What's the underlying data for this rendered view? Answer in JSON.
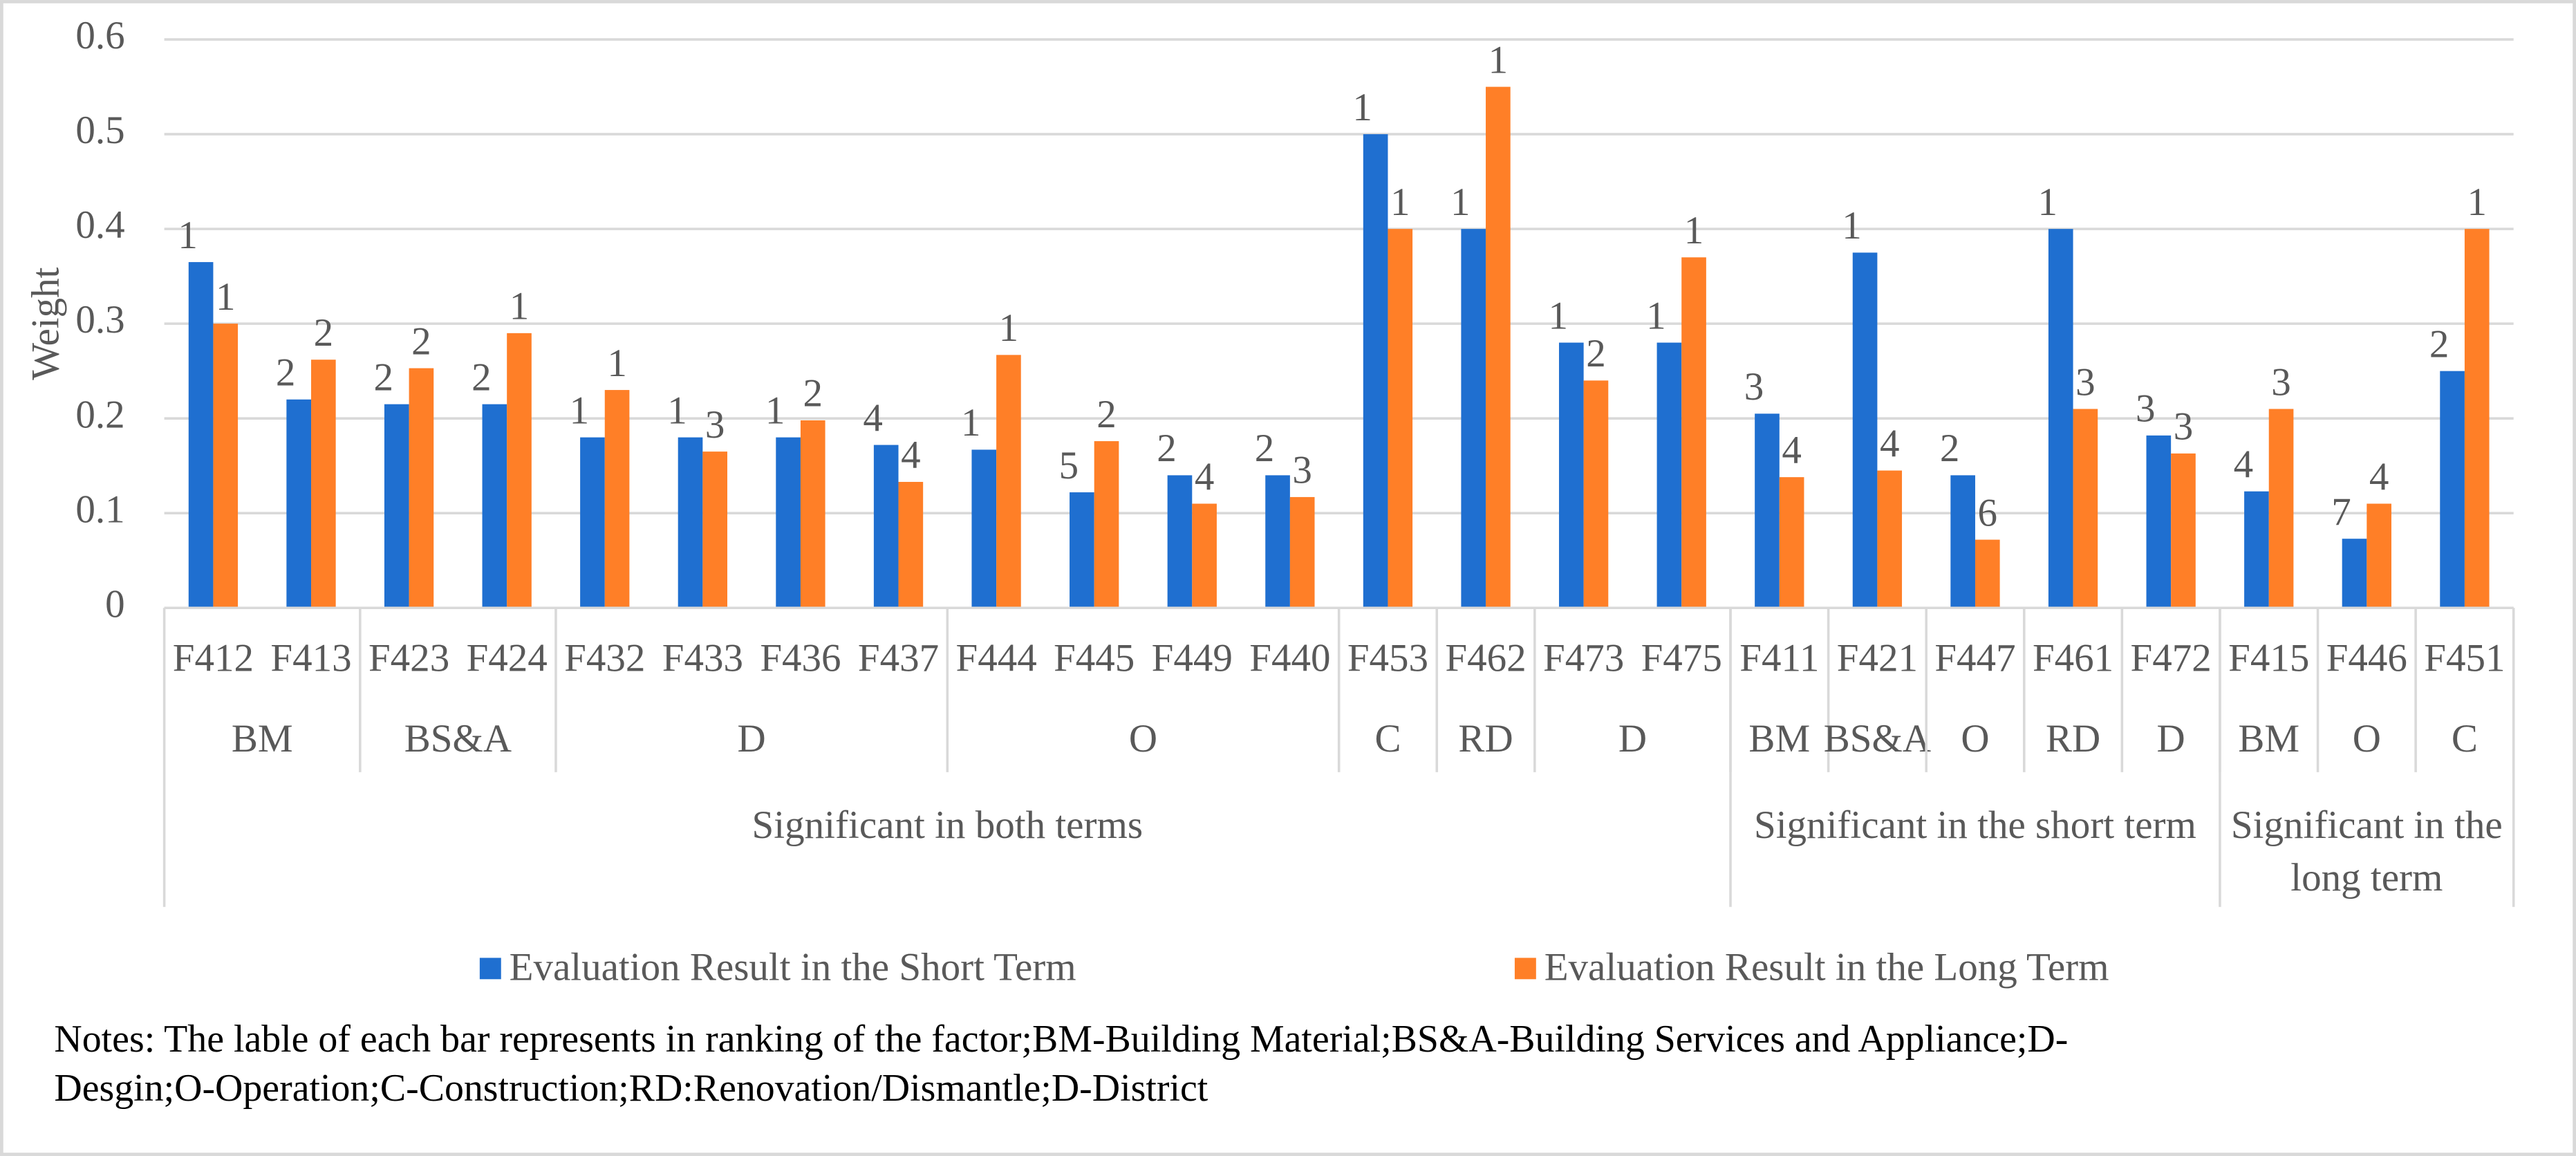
{
  "chart_data": {
    "type": "bar",
    "y_axis_label": "Weight",
    "ylim": [
      0,
      0.6
    ],
    "yticks": [
      0,
      0.1,
      0.2,
      0.3,
      0.4,
      0.5,
      0.6
    ],
    "grid": true,
    "legend": "bottom",
    "groups": [
      {
        "label": "Significant in both terms",
        "subgroups": [
          {
            "label": "BM",
            "categories": [
              "F412",
              "F413"
            ]
          },
          {
            "label": "BS&A",
            "categories": [
              "F423",
              "F424"
            ]
          },
          {
            "label": "D",
            "categories": [
              "F432",
              "F433",
              "F436",
              "F437"
            ]
          },
          {
            "label": "O",
            "categories": [
              "F444",
              "F445",
              "F449",
              "F440"
            ]
          },
          {
            "label": "C",
            "categories": [
              "F453"
            ]
          },
          {
            "label": "RD",
            "categories": [
              "F462"
            ]
          },
          {
            "label": "D",
            "categories": [
              "F473",
              "F475"
            ]
          }
        ]
      },
      {
        "label": "Significant in the short term",
        "subgroups": [
          {
            "label": "BM",
            "categories": [
              "F411"
            ]
          },
          {
            "label": "BS&A",
            "categories": [
              "F421"
            ]
          },
          {
            "label": "O",
            "categories": [
              "F447"
            ]
          },
          {
            "label": "RD",
            "categories": [
              "F461"
            ]
          },
          {
            "label": "D",
            "categories": [
              "F472"
            ]
          }
        ]
      },
      {
        "label": "Significant in the long term",
        "subgroups": [
          {
            "label": "BM",
            "categories": [
              "F415"
            ]
          },
          {
            "label": "O",
            "categories": [
              "F446"
            ]
          },
          {
            "label": "C",
            "categories": [
              "F451"
            ]
          }
        ]
      }
    ],
    "series": [
      {
        "name": "Evaluation Result in the Short Term",
        "color": "#1f6fd0",
        "values": [
          0.365,
          0.22,
          0.215,
          0.215,
          0.18,
          0.18,
          0.18,
          0.172,
          0.167,
          0.122,
          0.14,
          0.14,
          0.5,
          0.4,
          0.28,
          0.28,
          0.205,
          0.375,
          0.14,
          0.4,
          0.182,
          0.123,
          0.073,
          0.25
        ],
        "ranks": [
          1,
          2,
          2,
          2,
          1,
          1,
          1,
          4,
          1,
          5,
          2,
          2,
          1,
          1,
          1,
          1,
          3,
          1,
          2,
          1,
          3,
          4,
          7,
          2
        ]
      },
      {
        "name": "Evaluation Result in the Long Term",
        "color": "#ff7f27",
        "values": [
          0.3,
          0.262,
          0.253,
          0.29,
          0.23,
          0.165,
          0.198,
          0.133,
          0.267,
          0.176,
          0.11,
          0.117,
          0.4,
          0.55,
          0.24,
          0.37,
          0.138,
          0.145,
          0.072,
          0.21,
          0.163,
          0.21,
          0.11,
          0.4
        ],
        "ranks": [
          1,
          2,
          2,
          1,
          1,
          3,
          2,
          4,
          1,
          2,
          4,
          3,
          1,
          1,
          2,
          1,
          4,
          4,
          6,
          3,
          3,
          3,
          4,
          1
        ]
      }
    ]
  },
  "notes": "Notes: The lable of each bar represents in ranking of the factor;BM-Building Material;BS&A-Building Services and Appliance;D-Desgin;O-Operation;C-Construction;RD:Renovation/Dismantle;D-District"
}
